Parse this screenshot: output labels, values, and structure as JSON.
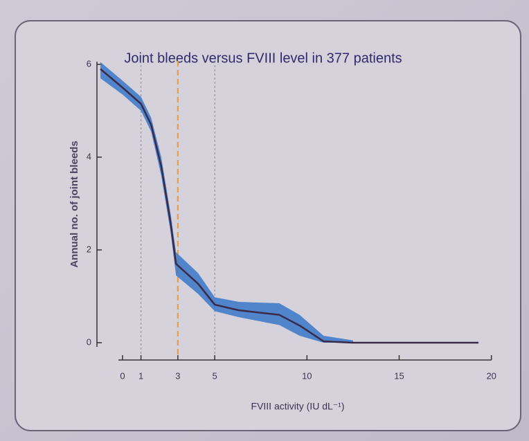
{
  "chart_data": {
    "type": "line",
    "title": "Joint bleeds versus FVIII level in 377 patients",
    "xlabel": "FVIII activity (IU dL⁻¹)",
    "ylabel": "Annual no. of joint bleeds",
    "x": [
      -1.2,
      0,
      1,
      1.55,
      2.1,
      2.6,
      2.9,
      4.1,
      5,
      6.3,
      8.5,
      9.6,
      10.9,
      12.5,
      19.3
    ],
    "values": [
      5.9,
      5.5,
      5.15,
      4.7,
      3.8,
      2.6,
      1.7,
      1.27,
      0.82,
      0.7,
      0.6,
      0.37,
      0.03,
      0,
      0
    ],
    "band_upper": [
      6.05,
      5.65,
      5.3,
      4.85,
      4.0,
      2.8,
      1.95,
      1.5,
      0.98,
      0.88,
      0.85,
      0.6,
      0.15,
      0.05,
      null
    ],
    "band_lower": [
      5.7,
      5.35,
      5.0,
      4.55,
      3.6,
      2.4,
      1.45,
      1.05,
      0.68,
      0.55,
      0.38,
      0.15,
      0,
      0,
      null
    ],
    "color": "#3a2a4a",
    "band_color": "#3a78c8",
    "reference_lines": [
      {
        "x": 1,
        "color": "#8a8a8a"
      },
      {
        "x": 3,
        "color": "#e89a3c"
      },
      {
        "x": 5,
        "color": "#8a8a8a"
      }
    ],
    "xlim": [
      -1.2,
      20.5
    ],
    "ylim": [
      0,
      6
    ],
    "xticks": [
      0,
      1,
      3,
      5,
      10,
      15,
      20
    ],
    "yticks": [
      0,
      2,
      4,
      6
    ]
  }
}
